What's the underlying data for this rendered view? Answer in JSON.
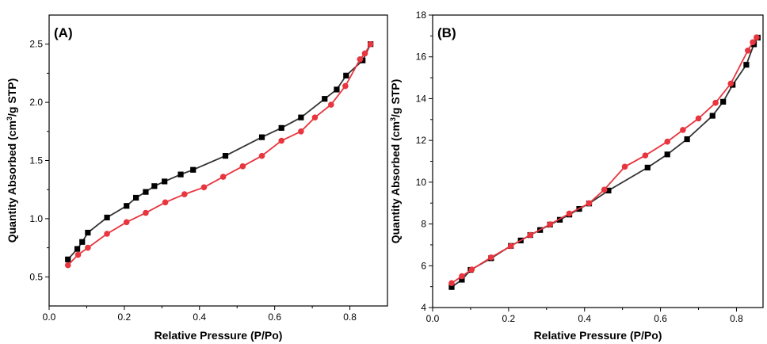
{
  "chart_data": [
    {
      "type": "line",
      "panel_label": "(A)",
      "xlabel": "Relative Pressure (P/Po)",
      "ylabel_main": "Quantity Absorbed (cm",
      "ylabel_sup": "3",
      "ylabel_rest": "/g STP)",
      "xlim": [
        0.0,
        0.9
      ],
      "ylim": [
        0.25,
        2.75
      ],
      "xticks": [
        "0.0",
        "0.2",
        "0.4",
        "0.6",
        "0.8"
      ],
      "yticks": [
        "0.5",
        "1.0",
        "1.5",
        "2.0",
        "2.5"
      ],
      "xtick_values": [
        0.0,
        0.2,
        0.4,
        0.6,
        0.8
      ],
      "ytick_values": [
        0.5,
        1.0,
        1.5,
        2.0,
        2.5
      ],
      "grid": false,
      "series": [
        {
          "marker": "square",
          "color": "#000000",
          "line_color": "#333333",
          "x": [
            0.05,
            0.075,
            0.088,
            0.103,
            0.154,
            0.206,
            0.231,
            0.257,
            0.28,
            0.307,
            0.35,
            0.383,
            0.469,
            0.566,
            0.618,
            0.67,
            0.733,
            0.765,
            0.79,
            0.834,
            0.855
          ],
          "y": [
            0.65,
            0.74,
            0.8,
            0.88,
            1.01,
            1.11,
            1.18,
            1.23,
            1.28,
            1.32,
            1.38,
            1.42,
            1.54,
            1.7,
            1.78,
            1.87,
            2.03,
            2.11,
            2.23,
            2.36,
            2.5
          ]
        },
        {
          "marker": "circle",
          "color": "#e8353e",
          "line_color": "#e8353e",
          "x": [
            0.05,
            0.077,
            0.103,
            0.154,
            0.206,
            0.257,
            0.309,
            0.36,
            0.412,
            0.463,
            0.515,
            0.566,
            0.618,
            0.67,
            0.707,
            0.75,
            0.788,
            0.827,
            0.84,
            0.855
          ],
          "y": [
            0.6,
            0.69,
            0.75,
            0.87,
            0.97,
            1.05,
            1.14,
            1.21,
            1.27,
            1.36,
            1.45,
            1.54,
            1.67,
            1.75,
            1.87,
            1.98,
            2.14,
            2.37,
            2.42,
            2.5
          ]
        }
      ]
    },
    {
      "type": "line",
      "panel_label": "(B)",
      "xlabel": "Relative Pressure (P/Po)",
      "ylabel_main": "Quantity Absorbed (cm",
      "ylabel_sup": "3",
      "ylabel_rest": "/g STP)",
      "xlim": [
        0.0,
        0.87
      ],
      "ylim": [
        4,
        18
      ],
      "xticks": [
        "0.0",
        "0.2",
        "0.4",
        "0.6",
        "0.8"
      ],
      "yticks": [
        "4",
        "6",
        "8",
        "10",
        "12",
        "14",
        "16",
        "18"
      ],
      "xtick_values": [
        0.0,
        0.2,
        0.4,
        0.6,
        0.8
      ],
      "ytick_values": [
        4,
        6,
        8,
        10,
        12,
        14,
        16,
        18
      ],
      "grid": false,
      "series": [
        {
          "marker": "square",
          "color": "#000000",
          "line_color": "#333333",
          "x": [
            0.05,
            0.077,
            0.1,
            0.154,
            0.206,
            0.232,
            0.257,
            0.283,
            0.309,
            0.335,
            0.36,
            0.386,
            0.412,
            0.463,
            0.566,
            0.618,
            0.67,
            0.737,
            0.765,
            0.79,
            0.826,
            0.846,
            0.856
          ],
          "y": [
            4.98,
            5.33,
            5.8,
            6.36,
            6.95,
            7.21,
            7.47,
            7.71,
            7.97,
            8.2,
            8.45,
            8.72,
            8.98,
            9.6,
            10.7,
            11.33,
            12.06,
            13.18,
            13.85,
            14.66,
            15.62,
            16.6,
            16.92
          ]
        },
        {
          "marker": "circle",
          "color": "#e8353e",
          "line_color": "#e8353e",
          "x": [
            0.05,
            0.077,
            0.103,
            0.154,
            0.206,
            0.257,
            0.309,
            0.36,
            0.412,
            0.452,
            0.506,
            0.56,
            0.618,
            0.659,
            0.7,
            0.745,
            0.785,
            0.83,
            0.843,
            0.853
          ],
          "y": [
            5.17,
            5.5,
            5.82,
            6.4,
            6.94,
            7.47,
            7.98,
            8.5,
            8.99,
            9.64,
            10.74,
            11.28,
            11.94,
            12.5,
            13.05,
            13.8,
            14.72,
            16.3,
            16.7,
            16.93
          ]
        }
      ]
    }
  ]
}
